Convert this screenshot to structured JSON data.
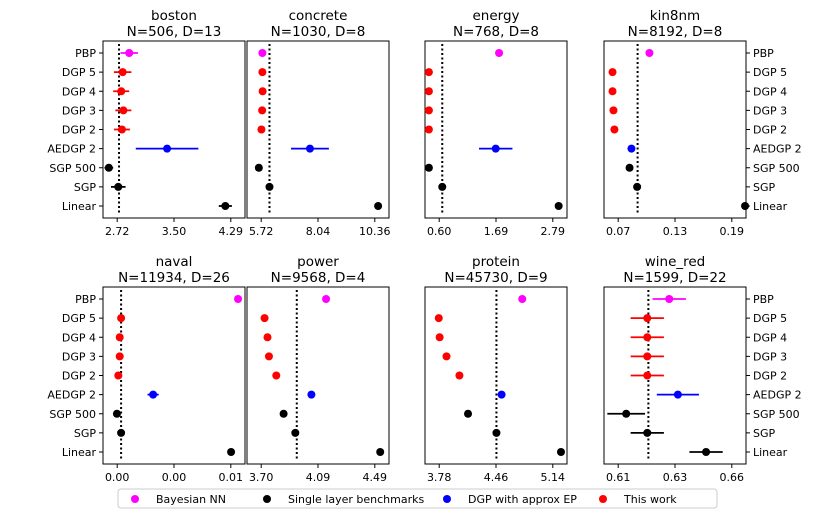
{
  "legend": [
    {
      "label": "Bayesian NN",
      "color": "#ff00ff"
    },
    {
      "label": "Single layer benchmarks",
      "color": "#000000"
    },
    {
      "label": "DGP with approx EP",
      "color": "#0000ff"
    },
    {
      "label": "This work",
      "color": "#ff0000"
    }
  ],
  "chart_data": [
    {
      "type": "scatter",
      "name": "boston",
      "title": "boston",
      "subtitle": "N=506, D=13",
      "xticks": [
        "2.72",
        "3.50",
        "4.29"
      ],
      "xlim": [
        2.5,
        4.45
      ],
      "refline": 2.72,
      "categories": [
        "PBP",
        "DGP 5",
        "DGP 4",
        "DGP 3",
        "DGP 2",
        "AEDGP 2",
        "SGP 500",
        "SGP",
        "Linear"
      ],
      "points": [
        {
          "label": "PBP",
          "value": 2.86,
          "err": 0.12,
          "group": "Bayesian NN"
        },
        {
          "label": "DGP 5",
          "value": 2.77,
          "err": 0.12,
          "group": "This work"
        },
        {
          "label": "DGP 4",
          "value": 2.75,
          "err": 0.11,
          "group": "This work"
        },
        {
          "label": "DGP 3",
          "value": 2.78,
          "err": 0.11,
          "group": "This work"
        },
        {
          "label": "DGP 2",
          "value": 2.76,
          "err": 0.11,
          "group": "This work"
        },
        {
          "label": "AEDGP 2",
          "value": 3.38,
          "err": 0.43,
          "group": "DGP with approx EP"
        },
        {
          "label": "SGP 500",
          "value": 2.58,
          "err": 0.06,
          "group": "Single layer benchmarks"
        },
        {
          "label": "SGP",
          "value": 2.71,
          "err": 0.1,
          "group": "Single layer benchmarks"
        },
        {
          "label": "Linear",
          "value": 4.18,
          "err": 0.09,
          "group": "Single layer benchmarks"
        }
      ]
    },
    {
      "type": "scatter",
      "name": "concrete",
      "title": "concrete",
      "subtitle": "N=1030, D=8",
      "xticks": [
        "5.72",
        "8.04",
        "10.36"
      ],
      "xlim": [
        5.0,
        11.0
      ],
      "refline": 5.95,
      "categories": [
        "PBP",
        "DGP 5",
        "DGP 4",
        "DGP 3",
        "DGP 2",
        "AEDGP 2",
        "SGP 500",
        "SGP",
        "Linear"
      ],
      "points": [
        {
          "label": "PBP",
          "value": 5.65,
          "err": 0.08,
          "group": "Bayesian NN"
        },
        {
          "label": "DGP 5",
          "value": 5.65,
          "err": 0.07,
          "group": "This work"
        },
        {
          "label": "DGP 4",
          "value": 5.66,
          "err": 0.07,
          "group": "This work"
        },
        {
          "label": "DGP 3",
          "value": 5.64,
          "err": 0.07,
          "group": "This work"
        },
        {
          "label": "DGP 2",
          "value": 5.61,
          "err": 0.07,
          "group": "This work"
        },
        {
          "label": "AEDGP 2",
          "value": 7.66,
          "err": 0.8,
          "group": "DGP with approx EP"
        },
        {
          "label": "SGP 500",
          "value": 5.5,
          "err": 0.06,
          "group": "Single layer benchmarks"
        },
        {
          "label": "SGP",
          "value": 5.95,
          "err": 0.07,
          "group": "Single layer benchmarks"
        },
        {
          "label": "Linear",
          "value": 10.54,
          "err": 0.07,
          "group": "Single layer benchmarks"
        }
      ]
    },
    {
      "type": "scatter",
      "name": "energy",
      "title": "energy",
      "subtitle": "N=768, D=8",
      "xticks": [
        "0.60",
        "1.69",
        "2.79"
      ],
      "xlim": [
        0.4,
        2.95
      ],
      "refline": 0.71,
      "categories": [
        "PBP",
        "DGP 5",
        "DGP 4",
        "DGP 3",
        "DGP 2",
        "AEDGP 2",
        "SGP 500",
        "SGP",
        "Linear"
      ],
      "points": [
        {
          "label": "PBP",
          "value": 1.73,
          "err": 0.03,
          "group": "Bayesian NN"
        },
        {
          "label": "DGP 5",
          "value": 0.47,
          "err": 0.02,
          "group": "This work"
        },
        {
          "label": "DGP 4",
          "value": 0.47,
          "err": 0.02,
          "group": "This work"
        },
        {
          "label": "DGP 3",
          "value": 0.47,
          "err": 0.02,
          "group": "This work"
        },
        {
          "label": "DGP 2",
          "value": 0.47,
          "err": 0.02,
          "group": "This work"
        },
        {
          "label": "AEDGP 2",
          "value": 1.67,
          "err": 0.3,
          "group": "DGP with approx EP"
        },
        {
          "label": "SGP 500",
          "value": 0.47,
          "err": 0.02,
          "group": "Single layer benchmarks"
        },
        {
          "label": "SGP",
          "value": 0.71,
          "err": 0.02,
          "group": "Single layer benchmarks"
        },
        {
          "label": "Linear",
          "value": 2.8,
          "err": 0.02,
          "group": "Single layer benchmarks"
        }
      ]
    },
    {
      "type": "scatter",
      "name": "kin8nm",
      "title": "kin8nm",
      "subtitle": "N=8192, D=8",
      "xticks": [
        "0.07",
        "0.13",
        "0.19"
      ],
      "xlim": [
        0.05,
        0.2
      ],
      "refline": 0.0855,
      "categories": [
        "PBP",
        "DGP 5",
        "DGP 4",
        "DGP 3",
        "DGP 2",
        "AEDGP 2",
        "SGP 500",
        "SGP",
        "Linear"
      ],
      "points": [
        {
          "label": "PBP",
          "value": 0.098,
          "err": 0.001,
          "group": "Bayesian NN"
        },
        {
          "label": "DGP 5",
          "value": 0.059,
          "err": 0.001,
          "group": "This work"
        },
        {
          "label": "DGP 4",
          "value": 0.059,
          "err": 0.001,
          "group": "This work"
        },
        {
          "label": "DGP 3",
          "value": 0.06,
          "err": 0.001,
          "group": "This work"
        },
        {
          "label": "DGP 2",
          "value": 0.061,
          "err": 0.001,
          "group": "This work"
        },
        {
          "label": "AEDGP 2",
          "value": 0.079,
          "err": 0.001,
          "group": "DGP with approx EP"
        },
        {
          "label": "SGP 500",
          "value": 0.077,
          "err": 0.001,
          "group": "Single layer benchmarks"
        },
        {
          "label": "SGP",
          "value": 0.085,
          "err": 0.001,
          "group": "Single layer benchmarks"
        },
        {
          "label": "Linear",
          "value": 0.199,
          "err": 0.001,
          "group": "Single layer benchmarks"
        }
      ]
    },
    {
      "type": "scatter",
      "name": "naval",
      "title": "naval",
      "subtitle": "N=11934, D=26",
      "xticks": [
        "0.00",
        "0.00",
        "0.01"
      ],
      "xlim": [
        -0.0012,
        0.009
      ],
      "refline": 0.0001,
      "categories": [
        "PBP",
        "DGP 5",
        "DGP 4",
        "DGP 3",
        "DGP 2",
        "AEDGP 2",
        "SGP 500",
        "SGP",
        "Linear"
      ],
      "points": [
        {
          "label": "PBP",
          "value": 0.0085,
          "err": 0.0001,
          "group": "Bayesian NN"
        },
        {
          "label": "DGP 5",
          "value": 0.0001,
          "err": 0.0001,
          "group": "This work"
        },
        {
          "label": "DGP 4",
          "value": 0.0,
          "err": 0.0001,
          "group": "This work"
        },
        {
          "label": "DGP 3",
          "value": 0.0,
          "err": 0.0001,
          "group": "This work"
        },
        {
          "label": "DGP 2",
          "value": -0.0001,
          "err": 0.0001,
          "group": "This work"
        },
        {
          "label": "AEDGP 2",
          "value": 0.0024,
          "err": 0.0004,
          "group": "DGP with approx EP"
        },
        {
          "label": "SGP 500",
          "value": -0.0002,
          "err": 0.0001,
          "group": "Single layer benchmarks"
        },
        {
          "label": "SGP",
          "value": 0.0001,
          "err": 0.0001,
          "group": "Single layer benchmarks"
        },
        {
          "label": "Linear",
          "value": 0.008,
          "err": 0.0001,
          "group": "Single layer benchmarks"
        }
      ]
    },
    {
      "type": "scatter",
      "name": "power",
      "title": "power",
      "subtitle": "N=9568, D=4",
      "xticks": [
        "3.70",
        "4.09",
        "4.49"
      ],
      "xlim": [
        3.58,
        4.55
      ],
      "refline": 3.92,
      "categories": [
        "PBP",
        "DGP 5",
        "DGP 4",
        "DGP 3",
        "DGP 2",
        "AEDGP 2",
        "SGP 500",
        "SGP",
        "Linear"
      ],
      "points": [
        {
          "label": "PBP",
          "value": 4.12,
          "err": 0.02,
          "group": "Bayesian NN"
        },
        {
          "label": "DGP 5",
          "value": 3.7,
          "err": 0.02,
          "group": "This work"
        },
        {
          "label": "DGP 4",
          "value": 3.72,
          "err": 0.02,
          "group": "This work"
        },
        {
          "label": "DGP 3",
          "value": 3.73,
          "err": 0.02,
          "group": "This work"
        },
        {
          "label": "DGP 2",
          "value": 3.78,
          "err": 0.02,
          "group": "This work"
        },
        {
          "label": "AEDGP 2",
          "value": 4.02,
          "err": 0.02,
          "group": "DGP with approx EP"
        },
        {
          "label": "SGP 500",
          "value": 3.83,
          "err": 0.02,
          "group": "Single layer benchmarks"
        },
        {
          "label": "SGP",
          "value": 3.91,
          "err": 0.02,
          "group": "Single layer benchmarks"
        },
        {
          "label": "Linear",
          "value": 4.49,
          "err": 0.02,
          "group": "Single layer benchmarks"
        }
      ]
    },
    {
      "type": "scatter",
      "name": "protein",
      "title": "protein",
      "subtitle": "N=45730, D=9",
      "xticks": [
        "3.78",
        "4.46",
        "5.14"
      ],
      "xlim": [
        3.6,
        5.25
      ],
      "refline": 4.43,
      "categories": [
        "PBP",
        "DGP 5",
        "DGP 4",
        "DGP 3",
        "DGP 2",
        "AEDGP 2",
        "SGP 500",
        "SGP",
        "Linear"
      ],
      "points": [
        {
          "label": "PBP",
          "value": 4.73,
          "err": 0.01,
          "group": "Bayesian NN"
        },
        {
          "label": "DGP 5",
          "value": 3.76,
          "err": 0.01,
          "group": "This work"
        },
        {
          "label": "DGP 4",
          "value": 3.77,
          "err": 0.01,
          "group": "This work"
        },
        {
          "label": "DGP 3",
          "value": 3.85,
          "err": 0.01,
          "group": "This work"
        },
        {
          "label": "DGP 2",
          "value": 4.0,
          "err": 0.01,
          "group": "This work"
        },
        {
          "label": "AEDGP 2",
          "value": 4.49,
          "err": 0.01,
          "group": "DGP with approx EP"
        },
        {
          "label": "SGP 500",
          "value": 4.1,
          "err": 0.01,
          "group": "Single layer benchmarks"
        },
        {
          "label": "SGP",
          "value": 4.43,
          "err": 0.01,
          "group": "Single layer benchmarks"
        },
        {
          "label": "Linear",
          "value": 5.18,
          "err": 0.01,
          "group": "Single layer benchmarks"
        }
      ]
    },
    {
      "type": "scatter",
      "name": "wine_red",
      "title": "wine_red",
      "subtitle": "N=1599, D=22",
      "xticks": [
        "0.61",
        "0.63",
        "0.66"
      ],
      "xlim": [
        0.603,
        0.667
      ],
      "refline": 0.623,
      "categories": [
        "PBP",
        "DGP 5",
        "DGP 4",
        "DGP 3",
        "DGP 2",
        "AEDGP 2",
        "SGP 500",
        "SGP",
        "Linear"
      ],
      "points": [
        {
          "label": "PBP",
          "value": 0.6324,
          "err": 0.0075,
          "group": "Bayesian NN"
        },
        {
          "label": "DGP 5",
          "value": 0.6225,
          "err": 0.0075,
          "group": "This work"
        },
        {
          "label": "DGP 4",
          "value": 0.6225,
          "err": 0.0075,
          "group": "This work"
        },
        {
          "label": "DGP 3",
          "value": 0.6225,
          "err": 0.0075,
          "group": "This work"
        },
        {
          "label": "DGP 2",
          "value": 0.6225,
          "err": 0.0075,
          "group": "This work"
        },
        {
          "label": "AEDGP 2",
          "value": 0.6363,
          "err": 0.0095,
          "group": "DGP with approx EP"
        },
        {
          "label": "SGP 500",
          "value": 0.613,
          "err": 0.0085,
          "group": "Single layer benchmarks"
        },
        {
          "label": "SGP",
          "value": 0.6225,
          "err": 0.0075,
          "group": "Single layer benchmarks"
        },
        {
          "label": "Linear",
          "value": 0.649,
          "err": 0.0075,
          "group": "Single layer benchmarks"
        }
      ]
    }
  ]
}
